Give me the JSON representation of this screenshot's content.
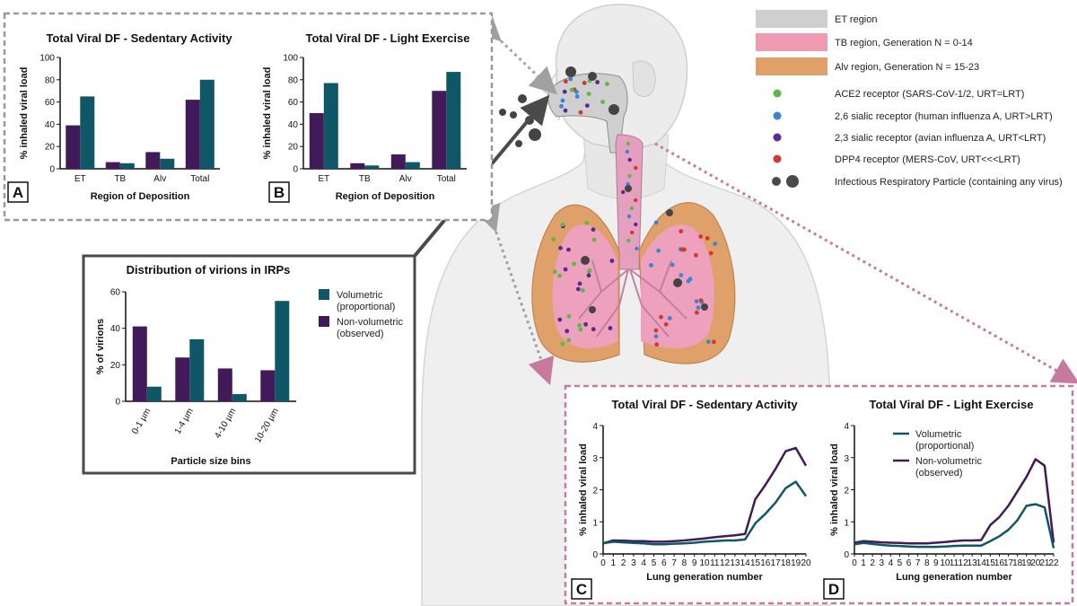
{
  "legend": {
    "items": [
      {
        "label": "ET region",
        "color": "#cfcfcf",
        "kind": "swatch"
      },
      {
        "label": "TB region, Generation N = 0-14",
        "color": "#ee9bb3",
        "kind": "swatch"
      },
      {
        "label": "Alv region, Generation N = 15-23",
        "color": "#dfa06a",
        "kind": "swatch"
      },
      {
        "label": "ACE2 receptor (SARS-CoV-1/2, URT=LRT)",
        "color": "#5db944",
        "kind": "dot"
      },
      {
        "label": "2,6 sialic receptor (human influenza A, URT>LRT)",
        "color": "#3e84d6",
        "kind": "dot"
      },
      {
        "label": "2,3 sialic receptor (avian influenza A, URT<LRT)",
        "color": "#5b2a8e",
        "kind": "dot"
      },
      {
        "label": "DPP4 receptor (MERS-CoV, URT<<<LRT)",
        "color": "#d1382f",
        "kind": "dot"
      },
      {
        "label": "Infectious Respiratory Particle (containing any virus)",
        "color": "#4a4a4a",
        "kind": "particle"
      }
    ]
  },
  "colors": {
    "teal": "#0f5667",
    "purple": "#421a59",
    "panel_border_gray": "#999999",
    "panel_border_pink": "#c77a9e"
  },
  "chart_data": [
    {
      "id": "A",
      "type": "bar",
      "title": "Total Viral DF - Sedentary Activity",
      "xlabel": "Region of Deposition",
      "ylabel": "% inhaled viral load",
      "categories": [
        "ET",
        "TB",
        "Alv",
        "Total"
      ],
      "ylim": [
        0,
        100
      ],
      "yticks": [
        "0",
        "20",
        "40",
        "60",
        "80",
        "100"
      ],
      "series": [
        {
          "name": "",
          "color": "#421a59",
          "values": [
            39,
            6,
            15,
            62
          ]
        },
        {
          "name": "",
          "color": "#0f5667",
          "values": [
            65,
            5,
            9,
            80
          ]
        }
      ]
    },
    {
      "id": "B",
      "type": "bar",
      "title": "Total Viral DF - Light Exercise",
      "xlabel": "Region of Deposition",
      "ylabel": "% inhaled viral load",
      "categories": [
        "ET",
        "TB",
        "Alv",
        "Total"
      ],
      "ylim": [
        0,
        100
      ],
      "yticks": [
        "0",
        "20",
        "40",
        "60",
        "80",
        "100"
      ],
      "series": [
        {
          "name": "",
          "color": "#421a59",
          "values": [
            50,
            5,
            13,
            70
          ]
        },
        {
          "name": "",
          "color": "#0f5667",
          "values": [
            77,
            3,
            6,
            87
          ]
        }
      ]
    },
    {
      "id": "IRP",
      "type": "bar",
      "title": "Distribution of virions in IRPs",
      "xlabel": "Particle size bins",
      "ylabel": "% of virions",
      "categories": [
        "0-1 µm",
        "1-4 µm",
        "4-10 µm",
        "10-20 µm"
      ],
      "ylim": [
        0,
        60
      ],
      "yticks": [
        "0",
        "20",
        "40",
        "60"
      ],
      "series": [
        {
          "name": "Non-volumetric (observed)",
          "color": "#421a59",
          "values": [
            41,
            24,
            18,
            17
          ]
        },
        {
          "name": "Volumetric (proportional)",
          "color": "#0f5667",
          "values": [
            8,
            34,
            4,
            55
          ]
        }
      ],
      "legend": [
        {
          "lines": [
            "Volumetric",
            "(proportional)"
          ],
          "color": "#0f5667"
        },
        {
          "lines": [
            "Non-volumetric",
            "(observed)"
          ],
          "color": "#421a59"
        }
      ]
    },
    {
      "id": "C",
      "type": "line",
      "title": "Total Viral DF - Sedentary Activity",
      "xlabel": "Lung generation number",
      "ylabel": "% inhaled viral load",
      "x": [
        "0",
        "1",
        "2",
        "3",
        "4",
        "5",
        "6",
        "7",
        "8",
        "9",
        "10",
        "11",
        "12",
        "13",
        "14",
        "15",
        "16",
        "17",
        "18",
        "19",
        "20"
      ],
      "ylim": [
        0,
        4
      ],
      "yticks": [
        "0",
        "1",
        "2",
        "3",
        "4"
      ],
      "series": [
        {
          "name": "Non-volumetric (observed)",
          "color": "#421a59",
          "values": [
            0.33,
            0.42,
            0.41,
            0.4,
            0.4,
            0.38,
            0.38,
            0.4,
            0.42,
            0.45,
            0.48,
            0.52,
            0.55,
            0.58,
            0.62,
            1.7,
            2.15,
            2.65,
            3.2,
            3.3,
            2.75
          ]
        },
        {
          "name": "Volumetric (proportional)",
          "color": "#0f5667",
          "values": [
            0.33,
            0.38,
            0.36,
            0.34,
            0.33,
            0.3,
            0.3,
            0.32,
            0.33,
            0.35,
            0.38,
            0.4,
            0.42,
            0.42,
            0.45,
            0.95,
            1.25,
            1.6,
            2.05,
            2.25,
            1.8
          ]
        }
      ]
    },
    {
      "id": "D",
      "type": "line",
      "title": "Total Viral DF - Light Exercise",
      "xlabel": "Lung generation number",
      "ylabel": "% inhaled viral load",
      "x": [
        "0",
        "1",
        "2",
        "3",
        "4",
        "5",
        "6",
        "7",
        "8",
        "9",
        "10",
        "11",
        "12",
        "13",
        "14",
        "15",
        "16",
        "17",
        "18",
        "19",
        "20",
        "21",
        "22"
      ],
      "ylim": [
        0,
        4
      ],
      "yticks": [
        "0",
        "1",
        "2",
        "3",
        "4"
      ],
      "series": [
        {
          "name": "Non-volumetric (observed)",
          "color": "#421a59",
          "values": [
            0.35,
            0.4,
            0.38,
            0.36,
            0.35,
            0.34,
            0.33,
            0.33,
            0.33,
            0.35,
            0.37,
            0.4,
            0.42,
            0.42,
            0.43,
            0.9,
            1.15,
            1.5,
            1.95,
            2.4,
            2.95,
            2.75,
            0.35
          ]
        },
        {
          "name": "Volumetric (proportional)",
          "color": "#0f5667",
          "values": [
            0.3,
            0.34,
            0.31,
            0.28,
            0.26,
            0.25,
            0.23,
            0.22,
            0.22,
            0.22,
            0.23,
            0.25,
            0.26,
            0.26,
            0.26,
            0.4,
            0.55,
            0.75,
            1.05,
            1.5,
            1.55,
            1.45,
            0.18
          ]
        }
      ],
      "legend": [
        {
          "lines": [
            "Volumetric",
            "(proportional)"
          ],
          "color": "#0f5667"
        },
        {
          "lines": [
            "Non-volumetric",
            "(observed)"
          ],
          "color": "#421a59"
        }
      ]
    }
  ]
}
